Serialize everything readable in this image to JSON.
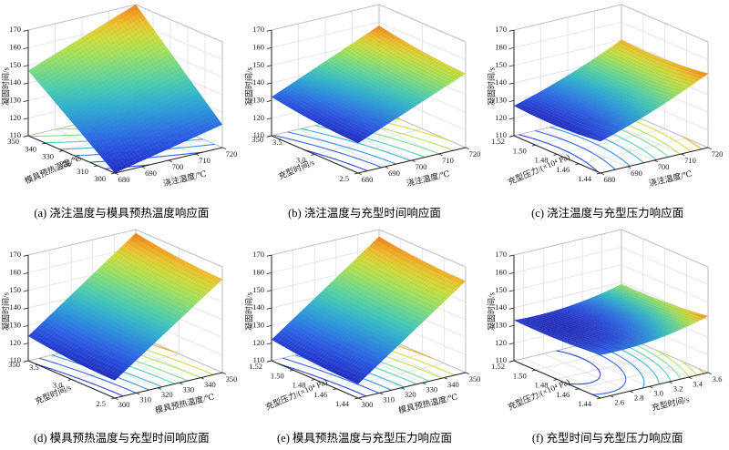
{
  "figure": {
    "background": "#ffffff",
    "grid_color": "#dcdcdc",
    "box_edge_color": "#b5b5b5",
    "axis_color": "#222222",
    "text_color": "#1a1a1a",
    "colormap": [
      [
        0,
        "#1f2bbf"
      ],
      [
        0.1,
        "#2546dd"
      ],
      [
        0.2,
        "#2a68e8"
      ],
      [
        0.3,
        "#2a90df"
      ],
      [
        0.4,
        "#2fb4d0"
      ],
      [
        0.5,
        "#48ceb2"
      ],
      [
        0.6,
        "#73dc8a"
      ],
      [
        0.7,
        "#a4e45c"
      ],
      [
        0.8,
        "#d0df39"
      ],
      [
        0.88,
        "#eec52b"
      ],
      [
        0.94,
        "#f5a321"
      ],
      [
        1,
        "#ef7f1b"
      ]
    ]
  },
  "chart_data": [
    {
      "id": "a",
      "type": "surface3d",
      "caption": "(a) 浇注温度与模具预热温度响应面",
      "x": {
        "label": "浇注温度/℃",
        "range": [
          680,
          720
        ],
        "ticks": [
          "680",
          "690",
          "700",
          "710",
          "720"
        ]
      },
      "y": {
        "label": "模具预热温度/℃",
        "range": [
          300,
          350
        ],
        "ticks": [
          "300",
          "310",
          "320",
          "330",
          "340",
          "350"
        ]
      },
      "z": {
        "label": "凝固时间/s",
        "range": [
          110,
          170
        ],
        "ticks": [
          "110",
          "120",
          "130",
          "140",
          "150",
          "160",
          "170"
        ]
      },
      "surface": {
        "corner_z": [
          110,
          123,
          147,
          170
        ],
        "sag_x": 0,
        "sag_y": 0
      },
      "contour_levels": 9
    },
    {
      "id": "b",
      "type": "surface3d",
      "caption": "(b) 浇注温度与充型时间响应面",
      "x": {
        "label": "浇注温度/℃",
        "range": [
          680,
          720
        ],
        "ticks": [
          "680",
          "690",
          "700",
          "710",
          "720"
        ]
      },
      "y": {
        "label": "充型时间/s",
        "range": [
          2.5,
          3.5
        ],
        "ticks": [
          "2.5",
          "3.0",
          "3.5"
        ]
      },
      "z": {
        "label": "凝固时间/s",
        "range": [
          110,
          170
        ],
        "ticks": [
          "110",
          "120",
          "130",
          "140",
          "150",
          "160",
          "170"
        ]
      },
      "surface": {
        "corner_z": [
          127,
          152,
          132,
          158
        ],
        "sag_x": 0,
        "sag_y": -1
      },
      "contour_levels": 9,
      "corner_note": "350"
    },
    {
      "id": "c",
      "type": "surface3d",
      "caption": "(c) 浇注温度与充型压力响应面",
      "x": {
        "label": "浇注温度/℃",
        "range": [
          680,
          720
        ],
        "ticks": [
          "680",
          "690",
          "700",
          "710",
          "720"
        ]
      },
      "y": {
        "label": "充型压力/(×10⁴ Pa)",
        "range": [
          1.44,
          1.52
        ],
        "ticks": [
          "1.44",
          "1.46",
          "1.48",
          "1.50",
          "1.52"
        ]
      },
      "z": {
        "label": "凝固时间/s",
        "range": [
          110,
          170
        ],
        "ticks": [
          "110",
          "120",
          "130",
          "140",
          "150",
          "160",
          "170"
        ]
      },
      "surface": {
        "corner_z": [
          128,
          152,
          127,
          150
        ],
        "sag_x": -1.5,
        "sag_y": -1.5
      },
      "contour_levels": 9
    },
    {
      "id": "d",
      "type": "surface3d",
      "caption": "(d) 模具预热温度与充型时间响应面",
      "x": {
        "label": "模具预热温度/℃",
        "range": [
          300,
          350
        ],
        "ticks": [
          "300",
          "310",
          "320",
          "330",
          "340",
          "350"
        ]
      },
      "y": {
        "label": "充型时间/s",
        "range": [
          2.5,
          3.5
        ],
        "ticks": [
          "2.5",
          "3.0",
          "3.5"
        ]
      },
      "z": {
        "label": "凝固时间/s",
        "range": [
          110,
          170
        ],
        "ticks": [
          "110",
          "120",
          "130",
          "140",
          "150",
          "160",
          "170"
        ]
      },
      "surface": {
        "corner_z": [
          120,
          163,
          124,
          168
        ],
        "sag_x": 0,
        "sag_y": -1
      },
      "contour_levels": 9,
      "corner_note": "350"
    },
    {
      "id": "e",
      "type": "surface3d",
      "caption": "(e) 模具预热温度与充型压力响应面",
      "x": {
        "label": "模具预热温度/℃",
        "range": [
          300,
          350
        ],
        "ticks": [
          "300",
          "310",
          "320",
          "330",
          "340",
          "350"
        ]
      },
      "y": {
        "label": "充型压力/(×10⁴ Pa)",
        "range": [
          1.44,
          1.52
        ],
        "ticks": [
          "1.44",
          "1.46",
          "1.48",
          "1.50",
          "1.52"
        ]
      },
      "z": {
        "label": "凝固时间/s",
        "range": [
          110,
          170
        ],
        "ticks": [
          "110",
          "120",
          "130",
          "140",
          "150",
          "160",
          "170"
        ]
      },
      "surface": {
        "corner_z": [
          118,
          162,
          122,
          166
        ],
        "sag_x": 0,
        "sag_y": -1
      },
      "contour_levels": 9
    },
    {
      "id": "f",
      "type": "surface3d",
      "caption": "(f) 充型时间与充型压力响应面",
      "x": {
        "label": "充型时间/s",
        "range": [
          2.5,
          3.6
        ],
        "ticks": [
          "2.6",
          "2.8",
          "3.0",
          "3.2",
          "3.4",
          "3.6"
        ]
      },
      "y": {
        "label": "充型压力/(×10⁴ Pa)",
        "range": [
          1.44,
          1.52
        ],
        "ticks": [
          "1.44",
          "1.46",
          "1.48",
          "1.50",
          "1.52"
        ]
      },
      "z": {
        "label": "凝固时间/s",
        "range": [
          110,
          170
        ],
        "ticks": [
          "110",
          "120",
          "130",
          "140",
          "150",
          "160",
          "170"
        ]
      },
      "surface": {
        "corner_z": [
          134.5,
          142,
          133,
          139
        ],
        "sag_x": -2.5,
        "sag_y": -1
      },
      "contour_levels": 9
    }
  ]
}
